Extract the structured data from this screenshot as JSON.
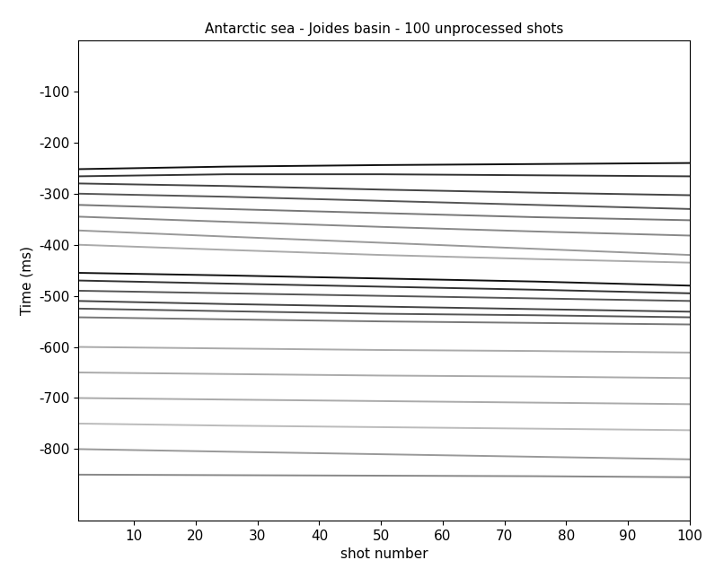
{
  "chart_data": {
    "type": "line",
    "title": "Antarctic sea - Joides basin - 100 unprocessed shots",
    "x_label": "shot number",
    "y_label": "Time (ms)",
    "x": [
      1,
      25,
      50,
      75,
      100
    ],
    "series": [
      {
        "color": "#111111",
        "values": [
          -252,
          -247,
          -244,
          -242,
          -240
        ]
      },
      {
        "color": "#333333",
        "values": [
          -266,
          -262,
          -262,
          -264,
          -266
        ]
      },
      {
        "color": "#444444",
        "values": [
          -280,
          -285,
          -292,
          -298,
          -303
        ]
      },
      {
        "color": "#555555",
        "values": [
          -300,
          -306,
          -314,
          -322,
          -330
        ]
      },
      {
        "color": "#777777",
        "values": [
          -322,
          -330,
          -338,
          -346,
          -352
        ]
      },
      {
        "color": "#888888",
        "values": [
          -345,
          -355,
          -365,
          -374,
          -382
        ]
      },
      {
        "color": "#999999",
        "values": [
          -372,
          -384,
          -396,
          -408,
          -420
        ]
      },
      {
        "color": "#aaaaaa",
        "values": [
          -400,
          -410,
          -420,
          -428,
          -435
        ]
      },
      {
        "color": "#111111",
        "values": [
          -455,
          -460,
          -466,
          -472,
          -480
        ]
      },
      {
        "color": "#333333",
        "values": [
          -470,
          -476,
          -482,
          -488,
          -495
        ]
      },
      {
        "color": "#555555",
        "values": [
          -490,
          -495,
          -500,
          -505,
          -510
        ]
      },
      {
        "color": "#444444",
        "values": [
          -510,
          -516,
          -521,
          -526,
          -531
        ]
      },
      {
        "color": "#555555",
        "values": [
          -525,
          -530,
          -535,
          -538,
          -542
        ]
      },
      {
        "color": "#777777",
        "values": [
          -542,
          -546,
          -550,
          -553,
          -556
        ]
      },
      {
        "color": "#aaaaaa",
        "values": [
          -600,
          -603,
          -606,
          -608,
          -611
        ]
      },
      {
        "color": "#aaaaaa",
        "values": [
          -650,
          -653,
          -656,
          -658,
          -661
        ]
      },
      {
        "color": "#aaaaaa",
        "values": [
          -700,
          -703,
          -706,
          -709,
          -712
        ]
      },
      {
        "color": "#bbbbbb",
        "values": [
          -750,
          -754,
          -757,
          -760,
          -763
        ]
      },
      {
        "color": "#999999",
        "values": [
          -800,
          -805,
          -810,
          -815,
          -820
        ]
      },
      {
        "color": "#888888",
        "values": [
          -850,
          -851,
          -852,
          -853,
          -855
        ]
      }
    ],
    "xlim": [
      1,
      100
    ],
    "xticks": [
      10,
      20,
      30,
      40,
      50,
      60,
      70,
      80,
      90,
      100
    ],
    "ylim": [
      -940,
      0
    ],
    "yticks": [
      -800,
      -700,
      -600,
      -500,
      -400,
      -300,
      -200,
      -100
    ],
    "grid": false
  }
}
